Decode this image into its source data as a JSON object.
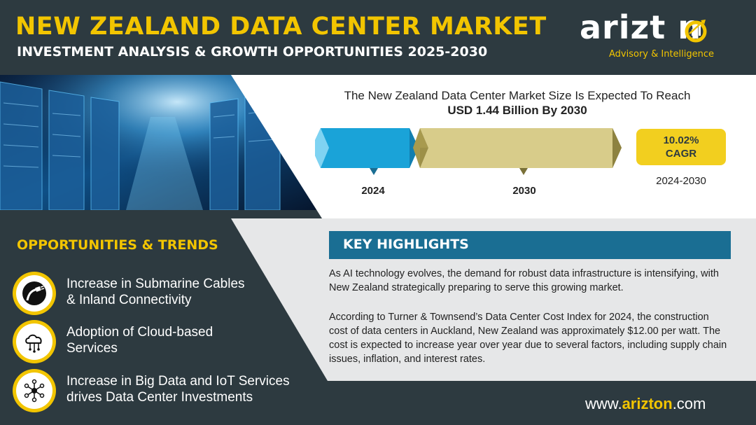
{
  "header": {
    "title": "NEW ZEALAND DATA CENTER MARKET",
    "subtitle": "INVESTMENT ANALYSIS & GROWTH OPPORTUNITIES 2025-2030"
  },
  "logo": {
    "wordmark": "arizt n",
    "tagline": "Advisory & Intelligence"
  },
  "market": {
    "line1": "The New Zealand Data Center Market Size Is Expected To Reach",
    "line2": "USD 1.44 Billion By 2030",
    "start_year": "2024",
    "end_year": "2030",
    "cagr_value": "10.02%",
    "cagr_label": "CAGR",
    "cagr_period": "2024-2030"
  },
  "opportunities": {
    "title": "OPPORTUNITIES & TRENDS",
    "items": [
      {
        "line1": "Increase in Submarine Cables",
        "line2": "& Inland Connectivity",
        "icon": "cable-icon"
      },
      {
        "line1": "Adoption of Cloud-based",
        "line2": "Services",
        "icon": "cloud-icon"
      },
      {
        "line1": "Increase in Big Data and IoT Services",
        "line2": "drives Data Center Investments",
        "icon": "network-icon"
      }
    ]
  },
  "highlights": {
    "title": "KEY HIGHLIGHTS",
    "p1": "As AI technology evolves, the demand for robust data infrastructure is intensifying, with New Zealand strategically preparing to serve this growing market.",
    "p2": "According to Turner & Townsend’s Data Center Cost Index for 2024, the construction cost of data centers in Auckland, New Zealand was approximately $12.00 per watt. The cost is expected to increase year over year due to several factors, including supply chain issues, inflation, and interest rates."
  },
  "footer": {
    "url_prefix": "www.",
    "url_brand": "arizton",
    "url_suffix": ".com"
  },
  "colors": {
    "background": "#2d3a40",
    "accent_yellow": "#f2c500",
    "highlight_blue": "#1a6e93",
    "arrow_blue": "#1aa3d8",
    "arrow_khaki": "#d8cc8a"
  }
}
